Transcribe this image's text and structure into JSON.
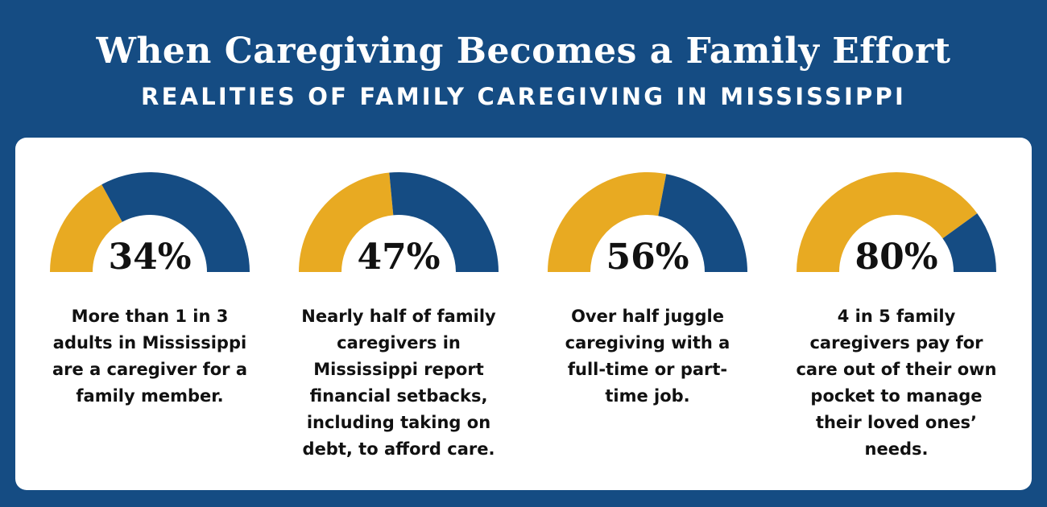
{
  "header": {
    "title": "When Caregiving Becomes a Family Effort",
    "subtitle": "REALITIES OF FAMILY CAREGIVING IN MISSISSIPPI"
  },
  "colors": {
    "background": "#154c83",
    "panel": "#ffffff",
    "gold": "#e8aa22",
    "blue": "#154c83",
    "text": "#111111"
  },
  "chart_data": [
    {
      "type": "gauge",
      "value": 34,
      "label": "34%",
      "description": "More than 1 in 3 adults in Mississippi are a caregiver for a family member."
    },
    {
      "type": "gauge",
      "value": 47,
      "label": "47%",
      "description": "Nearly half of family caregivers in Mississippi report financial setbacks, including taking on debt, to afford care."
    },
    {
      "type": "gauge",
      "value": 56,
      "label": "56%",
      "description": "Over half juggle caregiving with a full-time or part-time job."
    },
    {
      "type": "gauge",
      "value": 80,
      "label": "80%",
      "description": "4 in 5 family caregivers pay for care out of their own pocket to manage their loved ones’ needs."
    }
  ]
}
